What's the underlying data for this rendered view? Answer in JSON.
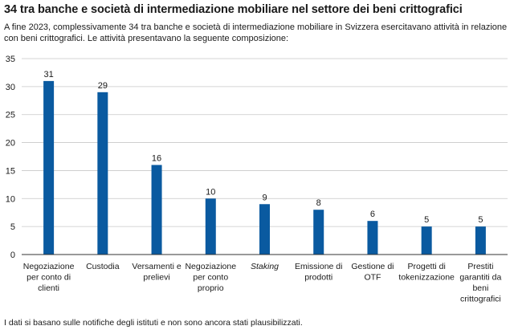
{
  "header": {
    "title": "34 tra banche e società di intermediazione mobiliare nel settore dei beni crittografici",
    "intro": "A fine 2023, complessivamente 34 tra banche e società di intermediazione mobiliare in Svizzera esercitavano attività in relazione con beni crittografici. Le attività presentavano la seguente composizione:"
  },
  "footnote": "I dati si basano sulle notifiche degli istituti e non sono ancora stati plausibilizzati.",
  "colors": {
    "bar": "#0a5aa0",
    "grid": "#c8c8c8",
    "axis": "#333333"
  },
  "chart_data": {
    "type": "bar",
    "title": "",
    "xlabel": "",
    "ylabel": "",
    "ylim": [
      0,
      35
    ],
    "yticks": [
      0,
      5,
      10,
      15,
      20,
      25,
      30,
      35
    ],
    "grid": true,
    "categories": [
      [
        "Negoziazione",
        "per conto di",
        "clienti"
      ],
      [
        "Custodia"
      ],
      [
        "Versamenti e",
        "prelievi"
      ],
      [
        "Negoziazione",
        "per conto",
        "proprio"
      ],
      [
        "Staking"
      ],
      [
        "Emissione di",
        "prodotti"
      ],
      [
        "Gestione di",
        "OTF"
      ],
      [
        "Progetti di",
        "tokenizzazione"
      ],
      [
        "Prestiti",
        "garantiti da",
        "beni",
        "crittografici"
      ]
    ],
    "italic_categories": [
      4
    ],
    "values": [
      31,
      29,
      16,
      10,
      9,
      8,
      6,
      5,
      5
    ]
  }
}
